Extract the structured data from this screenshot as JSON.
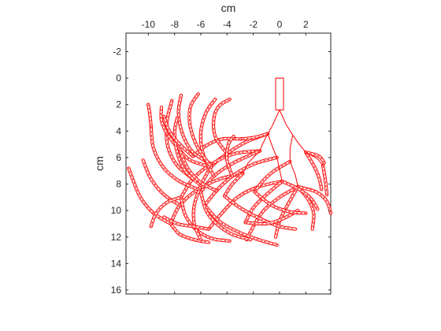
{
  "chart_data": {
    "type": "line",
    "title": "",
    "xlabel": "cm",
    "ylabel": "cm",
    "x_axis_location": "top",
    "y_axis_direction": "reversed",
    "xlim": [
      -11.7,
      3.9
    ],
    "ylim": [
      -3.4,
      16.3
    ],
    "x_ticks": [
      -10,
      -8,
      -6,
      -4,
      -2,
      0,
      2
    ],
    "x_tick_labels": [
      "-10",
      "-8",
      "-6",
      "-4",
      "-2",
      "0",
      "2"
    ],
    "y_ticks": [
      -2,
      0,
      2,
      4,
      6,
      8,
      10,
      12,
      14,
      16
    ],
    "y_tick_labels": [
      "-2",
      "0",
      "2",
      "4",
      "6",
      "8",
      "10",
      "12",
      "14",
      "16"
    ],
    "grid": false,
    "legend": "none",
    "line_color": "#ff0000",
    "axis_color": "#262626",
    "stem": {
      "x": [
        -0.3,
        0.3
      ],
      "y": [
        0,
        2.4
      ]
    },
    "branches": [
      [
        [
          0,
          2.4
        ],
        [
          -0.6,
          3.7
        ],
        [
          -0.9,
          4.2
        ]
      ],
      [
        [
          0,
          2.4
        ],
        [
          0.5,
          3.5
        ],
        [
          1.0,
          4.3
        ]
      ],
      [
        [
          -0.9,
          4.2
        ],
        [
          -1.3,
          5.0
        ],
        [
          -1.5,
          5.5
        ]
      ],
      [
        [
          -0.9,
          4.2
        ],
        [
          -0.5,
          5.3
        ],
        [
          -0.2,
          6.0
        ]
      ],
      [
        [
          1.0,
          4.3
        ],
        [
          0.8,
          5.3
        ],
        [
          0.8,
          6.3
        ]
      ],
      [
        [
          1.0,
          4.3
        ],
        [
          1.5,
          5.0
        ],
        [
          2.0,
          5.6
        ]
      ],
      [
        [
          -1.5,
          5.5
        ],
        [
          -2.4,
          6.4
        ],
        [
          -2.8,
          7.2
        ]
      ],
      [
        [
          -0.2,
          6.0
        ],
        [
          0.0,
          6.9
        ],
        [
          0.2,
          7.8
        ]
      ],
      [
        [
          0.8,
          6.3
        ],
        [
          1.2,
          7.3
        ],
        [
          1.4,
          8.2
        ]
      ],
      [
        [
          2.0,
          5.6
        ],
        [
          2.9,
          6.1
        ],
        [
          3.3,
          6.6
        ]
      ]
    ],
    "roots": [
      [
        [
          -0.9,
          4.2
        ],
        [
          -2.5,
          4.8
        ],
        [
          -4.0,
          5.7
        ],
        [
          -5.2,
          6.7
        ],
        [
          -6.0,
          8.1
        ]
      ],
      [
        [
          -0.9,
          4.2
        ],
        [
          -2.0,
          4.5
        ],
        [
          -3.0,
          4.6
        ]
      ],
      [
        [
          -1.5,
          5.5
        ],
        [
          -3.4,
          5.7
        ],
        [
          -5.2,
          6.5
        ],
        [
          -6.6,
          7.6
        ],
        [
          -7.5,
          9.0
        ]
      ],
      [
        [
          -1.5,
          5.5
        ],
        [
          -3.5,
          6.4
        ],
        [
          -5.0,
          7.4
        ],
        [
          -6.0,
          8.6
        ]
      ],
      [
        [
          -2.8,
          7.2
        ],
        [
          -4.5,
          7.6
        ],
        [
          -6.2,
          8.4
        ],
        [
          -7.6,
          9.6
        ],
        [
          -8.3,
          11.0
        ]
      ],
      [
        [
          -2.8,
          7.2
        ],
        [
          -3.6,
          8.0
        ],
        [
          -4.2,
          8.9
        ]
      ],
      [
        [
          -0.2,
          6.0
        ],
        [
          -2.0,
          6.5
        ],
        [
          -3.6,
          7.4
        ],
        [
          -4.8,
          8.5
        ],
        [
          -5.7,
          9.6
        ]
      ],
      [
        [
          0.2,
          7.8
        ],
        [
          -1.6,
          8.2
        ],
        [
          -3.2,
          9.0
        ],
        [
          -4.4,
          10.2
        ],
        [
          -5.4,
          11.4
        ]
      ],
      [
        [
          0.2,
          7.8
        ],
        [
          -1.0,
          8.8
        ],
        [
          -2.0,
          9.8
        ],
        [
          -2.6,
          10.9
        ]
      ],
      [
        [
          0.8,
          6.3
        ],
        [
          -0.4,
          7.0
        ],
        [
          -1.3,
          7.8
        ],
        [
          -1.9,
          8.6
        ]
      ],
      [
        [
          1.4,
          8.2
        ],
        [
          0.0,
          9.0
        ],
        [
          -1.2,
          10.0
        ],
        [
          -2.0,
          11.2
        ],
        [
          -2.5,
          12.2
        ]
      ],
      [
        [
          1.4,
          8.2
        ],
        [
          0.6,
          9.6
        ],
        [
          0.0,
          10.8
        ],
        [
          -0.3,
          12.0
        ]
      ],
      [
        [
          1.4,
          8.2
        ],
        [
          2.2,
          9.2
        ],
        [
          2.6,
          10.2
        ],
        [
          2.5,
          11.4
        ]
      ],
      [
        [
          2.0,
          5.6
        ],
        [
          2.6,
          6.6
        ],
        [
          3.0,
          7.5
        ],
        [
          3.2,
          8.4
        ]
      ],
      [
        [
          3.3,
          6.6
        ],
        [
          3.5,
          7.8
        ],
        [
          3.6,
          8.8
        ]
      ],
      [
        [
          2.0,
          5.6
        ],
        [
          3.0,
          5.9
        ],
        [
          3.4,
          6.4
        ]
      ],
      [
        [
          1.4,
          8.2
        ],
        [
          2.8,
          8.6
        ],
        [
          3.6,
          9.3
        ],
        [
          3.9,
          10.2
        ]
      ],
      [
        [
          0.2,
          7.8
        ],
        [
          1.5,
          8.4
        ],
        [
          2.4,
          9.1
        ],
        [
          2.9,
          9.9
        ]
      ],
      [
        [
          -4.2,
          8.9
        ],
        [
          -3.0,
          9.8
        ],
        [
          -1.5,
          10.6
        ],
        [
          0.0,
          11.2
        ],
        [
          1.2,
          11.4
        ]
      ],
      [
        [
          -5.7,
          9.6
        ],
        [
          -4.6,
          10.8
        ],
        [
          -3.2,
          11.6
        ],
        [
          -1.6,
          12.2
        ],
        [
          -0.2,
          12.6
        ]
      ],
      [
        [
          -6.0,
          8.6
        ],
        [
          -5.6,
          10.0
        ],
        [
          -4.8,
          11.0
        ],
        [
          -3.6,
          11.8
        ],
        [
          -2.2,
          12.2
        ]
      ],
      [
        [
          -7.5,
          9.0
        ],
        [
          -7.2,
          10.3
        ],
        [
          -6.4,
          11.4
        ],
        [
          -5.2,
          12.1
        ],
        [
          -3.8,
          12.3
        ]
      ],
      [
        [
          -8.3,
          11.0
        ],
        [
          -7.6,
          11.8
        ],
        [
          -6.5,
          12.2
        ],
        [
          -5.4,
          12.4
        ]
      ],
      [
        [
          -6.0,
          8.1
        ],
        [
          -6.5,
          9.6
        ],
        [
          -6.5,
          11.0
        ],
        [
          -6.0,
          12.2
        ]
      ],
      [
        [
          -2.6,
          10.9
        ],
        [
          -1.0,
          11.0
        ],
        [
          0.3,
          10.6
        ],
        [
          1.4,
          10.0
        ]
      ],
      [
        [
          -1.9,
          8.6
        ],
        [
          -0.6,
          9.6
        ],
        [
          0.8,
          10.1
        ],
        [
          2.0,
          10.2
        ]
      ],
      [
        [
          -3.0,
          4.6
        ],
        [
          -4.4,
          4.6
        ],
        [
          -5.6,
          5.1
        ],
        [
          -6.6,
          5.9
        ]
      ],
      [
        [
          -5.2,
          6.7
        ],
        [
          -6.8,
          6.2
        ],
        [
          -7.8,
          5.2
        ],
        [
          -8.6,
          4.2
        ]
      ],
      [
        [
          -5.2,
          6.5
        ],
        [
          -6.6,
          5.6
        ],
        [
          -7.4,
          4.2
        ],
        [
          -7.7,
          2.6
        ],
        [
          -7.5,
          1.3
        ]
      ],
      [
        [
          -6.6,
          7.6
        ],
        [
          -7.8,
          6.6
        ],
        [
          -8.5,
          5.2
        ],
        [
          -8.6,
          3.4
        ],
        [
          -8.2,
          1.7
        ]
      ],
      [
        [
          -5.0,
          7.4
        ],
        [
          -5.8,
          5.8
        ],
        [
          -6.0,
          4.1
        ],
        [
          -5.6,
          2.6
        ],
        [
          -4.9,
          1.6
        ]
      ],
      [
        [
          -4.0,
          5.7
        ],
        [
          -4.9,
          4.4
        ],
        [
          -5.0,
          3.0
        ],
        [
          -4.6,
          2.1
        ],
        [
          -3.8,
          1.6
        ]
      ],
      [
        [
          -5.2,
          6.7
        ],
        [
          -6.2,
          5.3
        ],
        [
          -6.8,
          3.7
        ],
        [
          -6.8,
          2.2
        ],
        [
          -6.2,
          1.2
        ]
      ],
      [
        [
          -3.6,
          7.4
        ],
        [
          -4.0,
          6.2
        ],
        [
          -3.9,
          5.0
        ],
        [
          -3.5,
          4.4
        ]
      ],
      [
        [
          -6.2,
          8.4
        ],
        [
          -7.6,
          7.8
        ],
        [
          -8.8,
          6.8
        ],
        [
          -9.6,
          5.3
        ],
        [
          -9.8,
          3.6
        ]
      ],
      [
        [
          -7.6,
          9.6
        ],
        [
          -8.8,
          8.8
        ],
        [
          -9.8,
          7.6
        ],
        [
          -10.4,
          6.2
        ]
      ],
      [
        [
          -8.3,
          11.0
        ],
        [
          -9.6,
          10.2
        ],
        [
          -10.6,
          9.0
        ],
        [
          -11.2,
          7.6
        ],
        [
          -11.5,
          6.8
        ]
      ],
      [
        [
          -6.0,
          8.1
        ],
        [
          -7.2,
          7.0
        ],
        [
          -7.8,
          5.6
        ],
        [
          -8.0,
          4.1
        ],
        [
          -7.8,
          3.0
        ]
      ],
      [
        [
          -4.8,
          8.5
        ],
        [
          -6.0,
          7.9
        ],
        [
          -7.0,
          6.8
        ],
        [
          -7.6,
          5.4
        ]
      ],
      [
        [
          -6.6,
          5.9
        ],
        [
          -7.6,
          5.0
        ],
        [
          -8.4,
          4.0
        ],
        [
          -8.8,
          2.9
        ]
      ],
      [
        [
          -8.6,
          4.2
        ],
        [
          -9.0,
          3.2
        ],
        [
          -9.0,
          2.2
        ]
      ],
      [
        [
          -9.8,
          3.6
        ],
        [
          -9.9,
          2.6
        ],
        [
          -10.0,
          2.0
        ]
      ],
      [
        [
          -7.5,
          9.0
        ],
        [
          -8.6,
          9.4
        ],
        [
          -9.4,
          10.2
        ],
        [
          -9.8,
          11.2
        ]
      ],
      [
        [
          -5.4,
          11.4
        ],
        [
          -6.6,
          11.2
        ],
        [
          -7.8,
          11.0
        ],
        [
          -8.8,
          10.5
        ]
      ]
    ]
  }
}
